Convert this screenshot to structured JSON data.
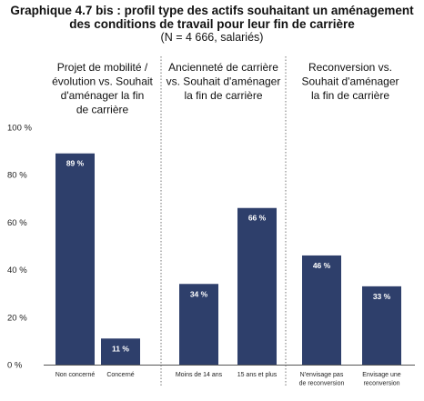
{
  "title": {
    "line1": "Graphique 4.7 bis : profil type des actifs souhaitant un aménagement",
    "line2": "des conditions de travail pour leur fin de carrière",
    "line3": "(N = 4 666, salariés)"
  },
  "chart_data": {
    "type": "bar",
    "title": "Graphique 4.7 bis : profil type des actifs souhaitant un aménagement des conditions de travail pour leur fin de carrière",
    "subtitle": "(N = 4 666, salariés)",
    "ylim": [
      0,
      100
    ],
    "yticks": [
      "0 %",
      "20 %",
      "40 %",
      "60 %",
      "80 %",
      "100 %"
    ],
    "bar_color": "#2e3f6b",
    "panels": [
      {
        "heading": [
          "Projet de mobilité /",
          "évolution vs. Souhait",
          "d'aménager la fin",
          "de carrière"
        ],
        "categories": [
          [
            "Non concerné"
          ],
          [
            "Concerné"
          ]
        ],
        "values": [
          89,
          11
        ],
        "value_labels": [
          "89 %",
          "11 %"
        ]
      },
      {
        "heading": [
          "Ancienneté de carrière",
          "vs. Souhait d'aménager",
          "la fin de carrière"
        ],
        "categories": [
          [
            "Moins de 14 ans"
          ],
          [
            "15 ans et plus"
          ]
        ],
        "values": [
          34,
          66
        ],
        "value_labels": [
          "34 %",
          "66 %"
        ]
      },
      {
        "heading": [
          "Reconversion vs.",
          "Souhait d'aménager",
          "la fin de carrière"
        ],
        "categories": [
          [
            "N'envisage pas",
            "de reconversion"
          ],
          [
            "Envisage une",
            "reconversion"
          ]
        ],
        "values": [
          46,
          33
        ],
        "value_labels": [
          "46 %",
          "33 %"
        ]
      }
    ]
  }
}
